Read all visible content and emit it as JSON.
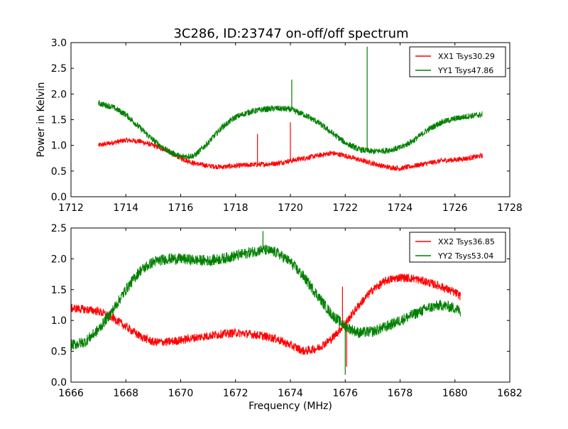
{
  "figure_title": "3C286, ID:23747 on-off/off spectrum",
  "chart_data": [
    {
      "type": "line",
      "title": "3C286, ID:23747 on-off/off spectrum",
      "xlabel": "",
      "ylabel": "Power in Kelvin",
      "xlim": [
        1712,
        1728
      ],
      "ylim": [
        0.0,
        3.0
      ],
      "xticks": [
        "1712",
        "1714",
        "1716",
        "1718",
        "1720",
        "1722",
        "1724",
        "1726",
        "1728"
      ],
      "yticks": [
        "0.0",
        "0.5",
        "1.0",
        "1.5",
        "2.0",
        "2.5",
        "3.0"
      ],
      "xtick_values": [
        1712,
        1714,
        1716,
        1718,
        1720,
        1722,
        1724,
        1726,
        1728
      ],
      "ytick_values": [
        0.0,
        0.5,
        1.0,
        1.5,
        2.0,
        2.5,
        3.0
      ],
      "grid": false,
      "legend_position": "top-right",
      "series": [
        {
          "name": "XX1 Tsys30.29",
          "color": "#ff0000",
          "noise": 0.05,
          "x": [
            1713.0,
            1713.5,
            1714.0,
            1714.5,
            1715.0,
            1715.5,
            1716.0,
            1716.5,
            1717.0,
            1717.5,
            1718.0,
            1718.5,
            1719.0,
            1719.5,
            1720.0,
            1720.5,
            1721.0,
            1721.5,
            1722.0,
            1722.5,
            1723.0,
            1723.5,
            1724.0,
            1724.5,
            1725.0,
            1725.5,
            1726.0,
            1726.5,
            1727.0
          ],
          "y": [
            1.0,
            1.05,
            1.1,
            1.08,
            1.0,
            0.9,
            0.75,
            0.65,
            0.6,
            0.58,
            0.6,
            0.62,
            0.63,
            0.65,
            0.7,
            0.75,
            0.8,
            0.85,
            0.8,
            0.72,
            0.65,
            0.58,
            0.55,
            0.6,
            0.65,
            0.7,
            0.72,
            0.75,
            0.8
          ],
          "spikes": [
            {
              "x": 1718.8,
              "y": 1.22
            },
            {
              "x": 1720.0,
              "y": 1.45
            }
          ]
        },
        {
          "name": "YY1 Tsys47.86",
          "color": "#008000",
          "noise": 0.06,
          "x": [
            1713.0,
            1713.5,
            1714.0,
            1714.5,
            1715.0,
            1715.5,
            1716.0,
            1716.5,
            1717.0,
            1717.5,
            1718.0,
            1718.5,
            1719.0,
            1719.5,
            1720.0,
            1720.5,
            1721.0,
            1721.5,
            1722.0,
            1722.5,
            1723.0,
            1723.5,
            1724.0,
            1724.5,
            1725.0,
            1725.5,
            1726.0,
            1726.5,
            1727.0
          ],
          "y": [
            1.82,
            1.75,
            1.6,
            1.35,
            1.1,
            0.9,
            0.78,
            0.8,
            1.05,
            1.35,
            1.55,
            1.65,
            1.7,
            1.72,
            1.7,
            1.6,
            1.45,
            1.25,
            1.05,
            0.92,
            0.88,
            0.9,
            0.95,
            1.1,
            1.3,
            1.45,
            1.52,
            1.57,
            1.6
          ],
          "spikes": [
            {
              "x": 1720.05,
              "y": 2.28
            },
            {
              "x": 1722.8,
              "y": 2.92
            }
          ]
        }
      ]
    },
    {
      "type": "line",
      "title": "",
      "xlabel": "Frequency (MHz)",
      "ylabel": "",
      "xlim": [
        1666,
        1682
      ],
      "ylim": [
        0.0,
        2.5
      ],
      "xticks": [
        "1666",
        "1668",
        "1670",
        "1672",
        "1674",
        "1676",
        "1678",
        "1680",
        "1682"
      ],
      "yticks": [
        "0.0",
        "0.5",
        "1.0",
        "1.5",
        "2.0",
        "2.5"
      ],
      "xtick_values": [
        1666,
        1668,
        1670,
        1672,
        1674,
        1676,
        1678,
        1680,
        1682
      ],
      "ytick_values": [
        0.0,
        0.5,
        1.0,
        1.5,
        2.0,
        2.5
      ],
      "grid": false,
      "legend_position": "top-right",
      "series": [
        {
          "name": "XX2 Tsys36.85",
          "color": "#ff0000",
          "noise": 0.07,
          "x": [
            1666.0,
            1666.5,
            1667.0,
            1667.5,
            1668.0,
            1668.5,
            1669.0,
            1669.5,
            1670.0,
            1670.5,
            1671.0,
            1671.5,
            1672.0,
            1672.5,
            1673.0,
            1673.5,
            1674.0,
            1674.5,
            1675.0,
            1675.5,
            1676.0,
            1676.5,
            1677.0,
            1677.5,
            1678.0,
            1678.5,
            1679.0,
            1679.5,
            1680.0,
            1680.2
          ],
          "y": [
            1.2,
            1.18,
            1.15,
            1.05,
            0.9,
            0.75,
            0.65,
            0.65,
            0.68,
            0.72,
            0.75,
            0.78,
            0.8,
            0.78,
            0.75,
            0.7,
            0.6,
            0.5,
            0.55,
            0.7,
            0.95,
            1.25,
            1.5,
            1.65,
            1.7,
            1.68,
            1.62,
            1.55,
            1.45,
            1.4
          ],
          "spikes": [
            {
              "x": 1675.9,
              "y": 1.55
            },
            {
              "x": 1676.05,
              "y": 0.25
            }
          ]
        },
        {
          "name": "YY2 Tsys53.04",
          "color": "#008000",
          "noise": 0.09,
          "x": [
            1666.0,
            1666.5,
            1667.0,
            1667.5,
            1668.0,
            1668.5,
            1669.0,
            1669.5,
            1670.0,
            1670.5,
            1671.0,
            1671.5,
            1672.0,
            1672.5,
            1673.0,
            1673.5,
            1674.0,
            1674.5,
            1675.0,
            1675.5,
            1676.0,
            1676.5,
            1677.0,
            1677.5,
            1678.0,
            1678.5,
            1679.0,
            1679.5,
            1680.0,
            1680.2
          ],
          "y": [
            0.6,
            0.65,
            0.85,
            1.15,
            1.5,
            1.8,
            1.95,
            2.0,
            2.0,
            1.98,
            1.97,
            2.0,
            2.05,
            2.1,
            2.15,
            2.1,
            1.95,
            1.7,
            1.4,
            1.1,
            0.9,
            0.8,
            0.82,
            0.9,
            1.0,
            1.1,
            1.2,
            1.25,
            1.2,
            1.15
          ],
          "spikes": [
            {
              "x": 1676.0,
              "y": 0.12
            },
            {
              "x": 1673.0,
              "y": 2.45
            }
          ]
        }
      ]
    }
  ]
}
